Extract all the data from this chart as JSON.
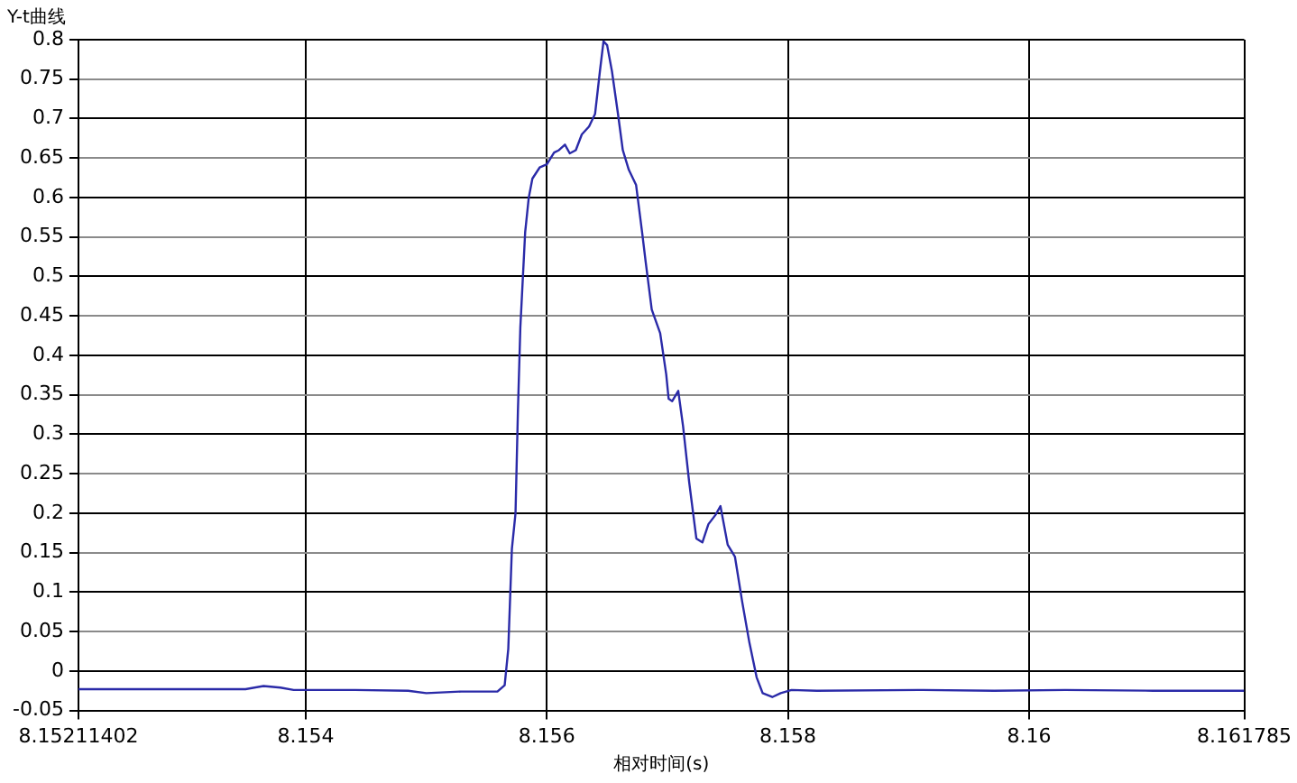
{
  "chart_data": {
    "type": "line",
    "title": "Y-t曲线",
    "xlabel": "相对时间(s)",
    "xlim": [
      8.15211402,
      8.161785
    ],
    "xticks": [
      8.15211402,
      8.154,
      8.156,
      8.158,
      8.16,
      8.161785
    ],
    "ylim": [
      -0.05,
      0.8
    ],
    "yticks": [
      -0.05,
      0,
      0.05,
      0.1,
      0.15,
      0.2,
      0.25,
      0.3,
      0.35,
      0.4,
      0.45,
      0.5,
      0.55,
      0.6,
      0.65,
      0.7,
      0.75,
      0.8
    ],
    "grid": true,
    "legend": false,
    "marker": "none",
    "line_style": "solid",
    "series": [
      {
        "color": "#2a2aa8",
        "x": [
          8.15211402,
          8.1535,
          8.15365,
          8.15379,
          8.1539,
          8.15441,
          8.15485,
          8.155,
          8.15529,
          8.15559,
          8.15565,
          8.15568,
          8.15571,
          8.15574,
          8.15576,
          8.15578,
          8.15582,
          8.15585,
          8.15588,
          8.15594,
          8.156,
          8.15606,
          8.1561,
          8.15615,
          8.15619,
          8.15624,
          8.15629,
          8.15635,
          8.1564,
          8.15644,
          8.15647,
          8.1565,
          8.15654,
          8.15659,
          8.15663,
          8.15668,
          8.15674,
          8.15679,
          8.15682,
          8.15687,
          8.15694,
          8.15699,
          8.15701,
          8.15704,
          8.15709,
          8.15713,
          8.15718,
          8.15724,
          8.15729,
          8.15734,
          8.1574,
          8.15744,
          8.1575,
          8.15756,
          8.15762,
          8.15768,
          8.15774,
          8.15779,
          8.15787,
          8.15794,
          8.15803,
          8.15824,
          8.15912,
          8.15971,
          8.1603,
          8.16103,
          8.161785
        ],
        "values": [
          -0.023,
          -0.023,
          -0.019,
          -0.021,
          -0.024,
          -0.024,
          -0.025,
          -0.028,
          -0.026,
          -0.026,
          -0.018,
          0.028,
          0.155,
          0.2,
          0.33,
          0.435,
          0.556,
          0.6,
          0.624,
          0.638,
          0.642,
          0.657,
          0.66,
          0.667,
          0.656,
          0.66,
          0.68,
          0.69,
          0.706,
          0.76,
          0.798,
          0.793,
          0.76,
          0.706,
          0.66,
          0.635,
          0.616,
          0.556,
          0.518,
          0.458,
          0.428,
          0.376,
          0.345,
          0.342,
          0.355,
          0.31,
          0.24,
          0.168,
          0.163,
          0.186,
          0.198,
          0.209,
          0.16,
          0.145,
          0.088,
          0.036,
          -0.008,
          -0.028,
          -0.033,
          -0.028,
          -0.024,
          -0.025,
          -0.024,
          -0.025,
          -0.024,
          -0.025,
          -0.025
        ]
      }
    ]
  }
}
